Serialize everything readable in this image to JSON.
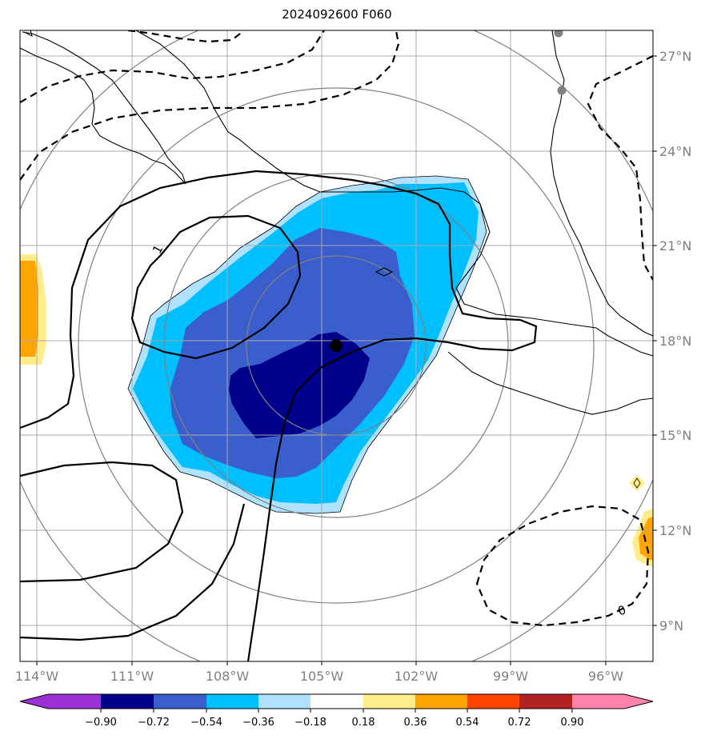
{
  "title": "2024092600 F060",
  "map": {
    "lon_ticks": [
      "114°W",
      "111°W",
      "108°W",
      "105°W",
      "102°W",
      "99°W",
      "96°W"
    ],
    "lat_ticks": [
      "27°N",
      "24°N",
      "21°N",
      "18°N",
      "15°N",
      "12°N",
      "9°N"
    ],
    "center_marker": {
      "lat": 17.8,
      "lon": -104.5
    },
    "contour_labels": [
      "1",
      "0"
    ],
    "point_markers": [
      {
        "lat": 27.7,
        "lon": -97.7
      },
      {
        "lat": 25.8,
        "lon": -97.5
      }
    ]
  },
  "colorbar": {
    "ticks": [
      "−0.90",
      "−0.72",
      "−0.54",
      "−0.36",
      "−0.18",
      "0.18",
      "0.36",
      "0.54",
      "0.72",
      "0.90"
    ],
    "colors": [
      "#9b30d6",
      "#00008b",
      "#3a5fcd",
      "#00bfff",
      "#b0e2ff",
      "#ffffff",
      "#ffec8b",
      "#ffa500",
      "#ff4500",
      "#b22222",
      "#ff82ab"
    ]
  },
  "colors": {
    "fill_neg_strong": "#00008b",
    "fill_neg_mid": "#3a5fcd",
    "fill_neg_light": "#00bfff",
    "fill_neg_faint": "#b0e2ff",
    "fill_pos_faint": "#ffec8b",
    "fill_pos_mid": "#ffa500",
    "grid": "#a9a9a9",
    "range_rings": "#808080"
  }
}
